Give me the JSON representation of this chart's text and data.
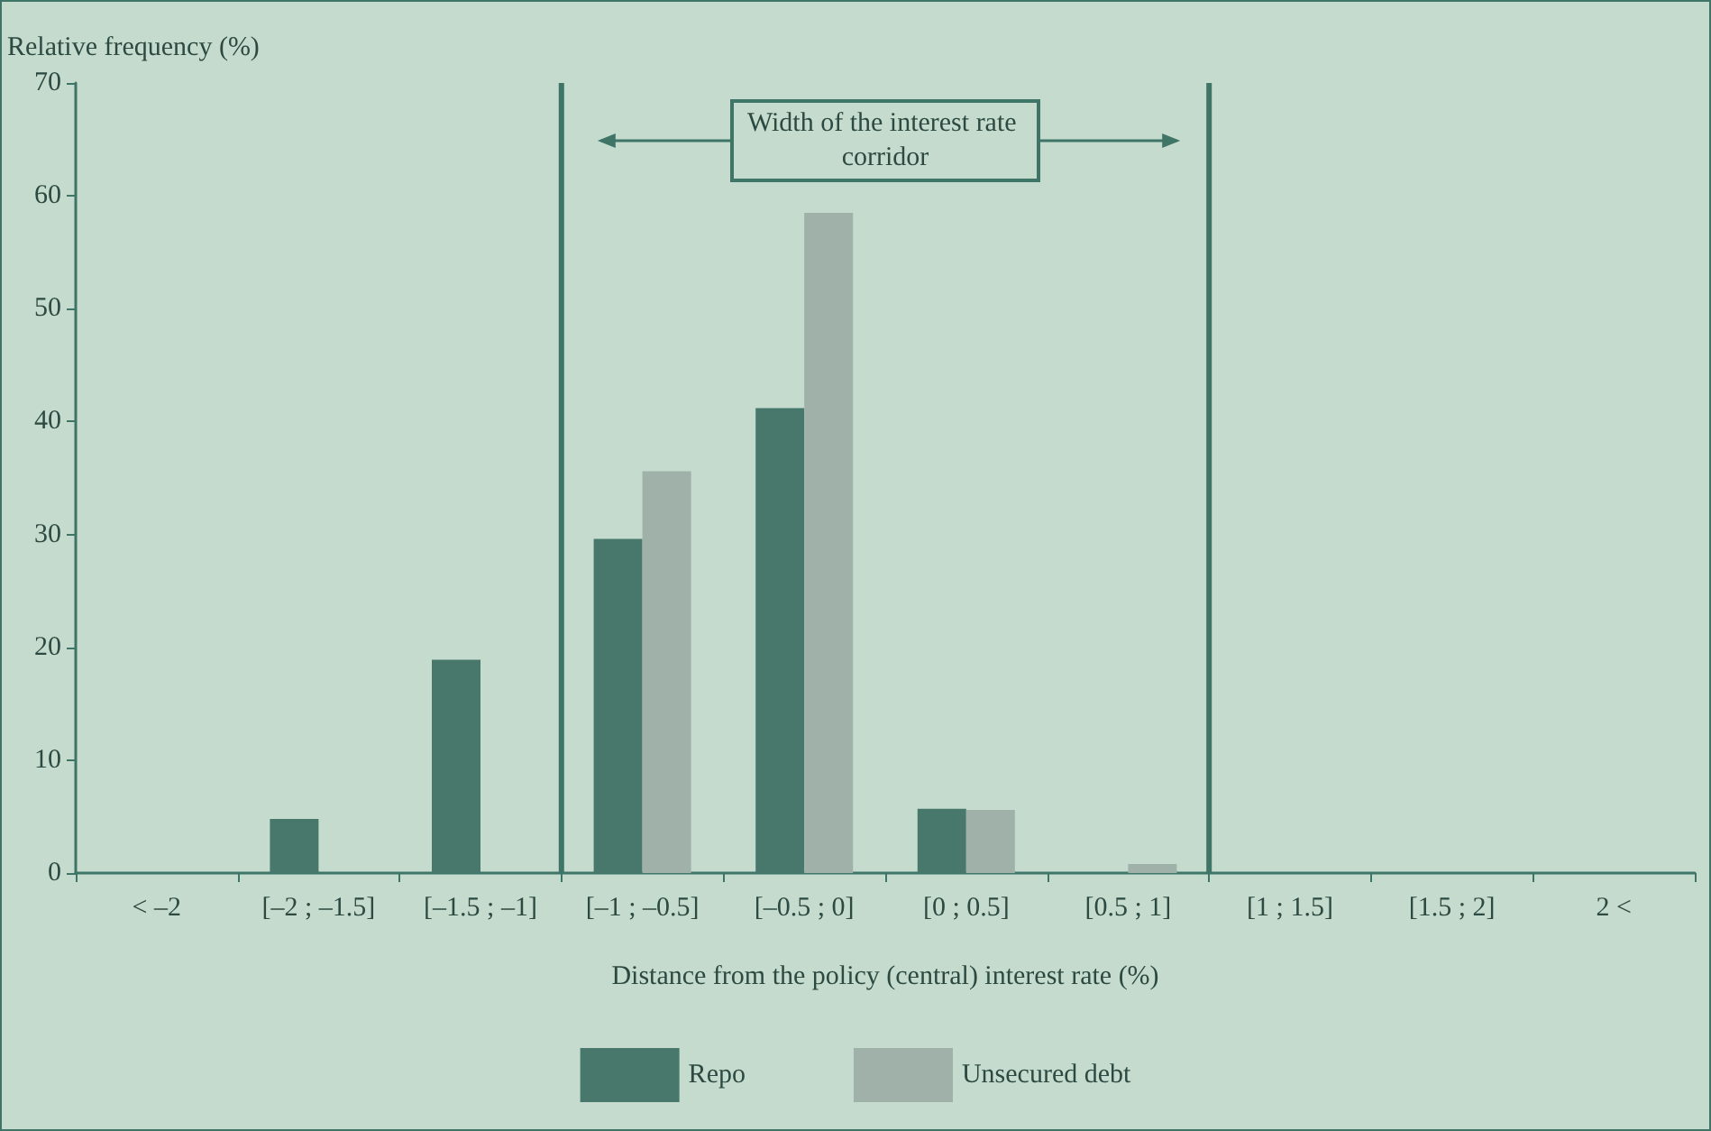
{
  "chart_data": {
    "type": "bar",
    "ylabel": "Relative frequency (%)",
    "xlabel": "Distance from the policy (central) interest rate (%)",
    "categories": [
      "< –2",
      "[–2 ; –1.5]",
      "[–1.5 ; –1]",
      "[–1 ; –0.5]",
      "[–0.5 ; 0]",
      "[0 ; 0.5]",
      "[0.5 ; 1]",
      "[1 ; 1.5]",
      "[1.5 ; 2]",
      "2 <"
    ],
    "series": [
      {
        "name": "Repo",
        "color": "#48786c",
        "values": [
          null,
          4.8,
          18.9,
          29.6,
          41.2,
          5.7,
          null,
          null,
          null,
          null
        ]
      },
      {
        "name": "Unsecured debt",
        "color": "#9fb1a8",
        "values": [
          null,
          null,
          null,
          35.6,
          58.5,
          5.6,
          0.8,
          null,
          null,
          null
        ]
      }
    ],
    "ylim": [
      0,
      70
    ],
    "yticks": [
      0,
      10,
      20,
      30,
      40,
      50,
      60,
      70
    ],
    "grid": false,
    "legend": "bottom",
    "bands": [
      {
        "axis": "x",
        "from": "[–1 ; –0.5]",
        "to": "[0.5 ; 1]",
        "label": "Width of the interest rate corridor",
        "color": "#3f7566"
      }
    ]
  }
}
